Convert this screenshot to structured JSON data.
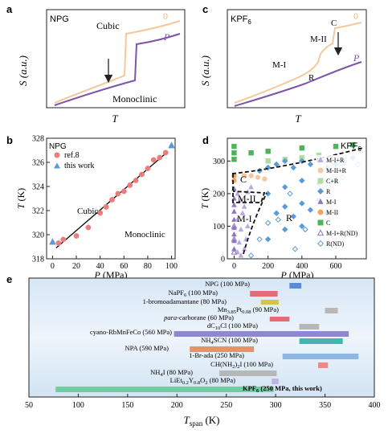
{
  "chart_data": [
    {
      "panel": "a",
      "type": "line",
      "material": "NPG",
      "xlabel": "T",
      "ylabel": "S (a.u.)",
      "labels": {
        "high": "Cubic",
        "low": "Monoclinic",
        "p0": "0",
        "pP": "P"
      },
      "series": [
        {
          "name": "0",
          "color": "#f5c79b"
        },
        {
          "name": "P",
          "color": "#7b55a8"
        }
      ]
    },
    {
      "panel": "c",
      "type": "line",
      "material": "KPF6",
      "xlabel": "T",
      "ylabel": "S (a.u.)",
      "labels": {
        "c": "C",
        "m2": "M-II",
        "m1": "M-I",
        "r": "R",
        "p0": "0",
        "pP": "P"
      },
      "series": [
        {
          "name": "0",
          "color": "#f5c79b"
        },
        {
          "name": "P",
          "color": "#7b55a8"
        }
      ]
    },
    {
      "panel": "b",
      "type": "scatter",
      "material": "NPG",
      "xlabel": "P (MPa)",
      "ylabel": "T (K)",
      "xlim": [
        -5,
        103
      ],
      "ylim": [
        318,
        328
      ],
      "xticks": [
        0,
        20,
        40,
        60,
        80,
        100
      ],
      "yticks": [
        318,
        320,
        322,
        324,
        326,
        328
      ],
      "regions": {
        "upper": "Cubic",
        "lower": "Monoclinic"
      },
      "series": [
        {
          "name": "ref.8",
          "color": "#ec7c7c",
          "marker": "circle",
          "x": [
            5,
            9,
            20,
            30,
            40,
            45,
            50,
            55,
            60,
            65,
            70,
            75,
            80,
            85,
            90,
            95
          ],
          "y": [
            319.3,
            319.6,
            319.9,
            320.6,
            321.8,
            322.3,
            322.9,
            323.4,
            323.6,
            324.1,
            324.5,
            325.0,
            325.5,
            326.2,
            326.4,
            326.8
          ]
        },
        {
          "name": "this work",
          "color": "#5b9bd5",
          "marker": "triangle",
          "x": [
            0,
            100
          ],
          "y": [
            319.4,
            327.4
          ]
        }
      ],
      "fit": {
        "x": [
          3,
          97
        ],
        "y": [
          318.9,
          326.9
        ]
      }
    },
    {
      "panel": "d",
      "type": "scatter",
      "material": "KPF6",
      "xlabel": "P (MPa)",
      "ylabel": "T (K)",
      "xlim": [
        -40,
        780
      ],
      "ylim": [
        0,
        370
      ],
      "xticks": [
        0,
        200,
        400,
        600
      ],
      "yticks": [
        0,
        100,
        200,
        300
      ],
      "regions": {
        "c": "C",
        "m2": "M-II",
        "m1": "M-I",
        "r": "R"
      },
      "legend": [
        {
          "label": "M-I+R",
          "marker": "triangle",
          "color": "#b9a8dd"
        },
        {
          "label": "M-II+R",
          "marker": "circle",
          "color": "#f6c79c"
        },
        {
          "label": "C+R",
          "marker": "square",
          "color": "#aedd9f"
        },
        {
          "label": "R",
          "marker": "diamond",
          "color": "#5b9bd5"
        },
        {
          "label": "M-I",
          "marker": "triangle",
          "color": "#8d76c3"
        },
        {
          "label": "M-II",
          "marker": "circle",
          "color": "#f2a35c"
        },
        {
          "label": "C",
          "marker": "square",
          "color": "#4fb35b"
        },
        {
          "label": "M-I+R(ND)",
          "marker": "triangle-open",
          "color": "#8d76c3"
        },
        {
          "label": "R(ND)",
          "marker": "diamond-open",
          "color": "#5b9bd5"
        }
      ],
      "points": [
        {
          "s": "C",
          "x": [
            0,
            0,
            0,
            100,
            200,
            400,
            600,
            700
          ],
          "y": [
            345,
            325,
            305,
            325,
            330,
            340,
            345,
            350
          ]
        },
        {
          "s": "C+R",
          "x": [
            200,
            300,
            400,
            500
          ],
          "y": [
            300,
            305,
            310,
            318
          ]
        },
        {
          "s": "M-II",
          "x": [
            0,
            0
          ],
          "y": [
            255,
            240
          ]
        },
        {
          "s": "M-II+R",
          "x": [
            60,
            100,
            140,
            180
          ],
          "y": [
            255,
            255,
            250,
            245
          ]
        },
        {
          "s": "M-I",
          "x": [
            0,
            0,
            0,
            0,
            0,
            0,
            0,
            0,
            0
          ],
          "y": [
            215,
            185,
            165,
            145,
            120,
            95,
            75,
            55,
            30
          ]
        },
        {
          "s": "M-I+R",
          "x": [
            20,
            40,
            60,
            80,
            100,
            20,
            50,
            80,
            40,
            70,
            30,
            60,
            20,
            40
          ],
          "y": [
            200,
            180,
            160,
            205,
            220,
            120,
            140,
            100,
            90,
            60,
            50,
            30,
            20,
            10
          ]
        },
        {
          "s": "M-I+R(ND)",
          "x": [
            0,
            0,
            0
          ],
          "y": [
            100,
            60,
            20
          ]
        },
        {
          "s": "R",
          "x": [
            150,
            200,
            250,
            300,
            350,
            400,
            450,
            500,
            550,
            600,
            650,
            700,
            200,
            300,
            400,
            500,
            600,
            300,
            400,
            500,
            250,
            350,
            450,
            550,
            400,
            300,
            200
          ],
          "y": [
            270,
            280,
            290,
            300,
            280,
            300,
            290,
            300,
            280,
            290,
            300,
            310,
            200,
            220,
            240,
            230,
            240,
            160,
            170,
            180,
            140,
            130,
            150,
            140,
            100,
            90,
            60
          ]
        },
        {
          "s": "R(ND)",
          "x": [
            100,
            150,
            200,
            260,
            330,
            360,
            420,
            640,
            730
          ],
          "y": [
            10,
            60,
            110,
            120,
            200,
            30,
            90,
            250,
            290
          ]
        }
      ]
    },
    {
      "panel": "e",
      "type": "bar",
      "orientation": "horizontal",
      "xlabel": "T",
      "xlabel_sub": "span",
      "xlabel_unit": " (K)",
      "xlim": [
        50,
        400
      ],
      "xticks": [
        50,
        100,
        150,
        200,
        250,
        300,
        350,
        400
      ],
      "bars": [
        {
          "label": "NPG (100 MPa)",
          "start": 314,
          "end": 326,
          "color": "#5b8bd1"
        },
        {
          "label": "NaPF6 (100 MPa)",
          "start": 274,
          "end": 302,
          "color": "#e26b75"
        },
        {
          "label": "1-bromoadamantane (80 MPa)",
          "start": 285,
          "end": 303,
          "color": "#d7c150"
        },
        {
          "label": "Mn3.85Pt0.08 (90 MPa)",
          "start": 350,
          "end": 363,
          "color": "#b7b7b7"
        },
        {
          "label": "para-carborane (60 MPa)",
          "start": 294,
          "end": 314,
          "color": "#e26b75"
        },
        {
          "label": "dC10Cl (100 MPa)",
          "start": 324,
          "end": 344,
          "color": "#b7b7b7"
        },
        {
          "label": "cyano-RbMnFeCo (560 MPa)",
          "start": 197,
          "end": 374,
          "color": "#8f86d4"
        },
        {
          "label": "NH4SCN (100 MPa)",
          "start": 324,
          "end": 368,
          "color": "#49b3b2"
        },
        {
          "label": "NPA (590 MPa)",
          "start": 213,
          "end": 278,
          "color": "#e0956a"
        },
        {
          "label": "1-Br-ada (250 MPa)",
          "start": 307,
          "end": 384,
          "color": "#8fb5e3"
        },
        {
          "label": "CH(NH2)2I (100 MPa)",
          "start": 343,
          "end": 353,
          "color": "#ec8a8a"
        },
        {
          "label": "NH4I (80 MPa)",
          "start": 243,
          "end": 301,
          "color": "#b7b7b7"
        },
        {
          "label": "LiEt0.2Y0.8O2 (80 MPa)",
          "start": 296,
          "end": 303,
          "color": "#c3b2e0"
        },
        {
          "label": "KPF6 (250 MPa, this work)",
          "start": 77,
          "end": 298,
          "color": "#72cca2"
        }
      ]
    }
  ],
  "panel_letters": {
    "a": "a",
    "b": "b",
    "c": "c",
    "d": "d",
    "e": "e"
  },
  "bar_labels": {
    "npg": "NPG (100 MPa)",
    "napf6_pre": "NaPF",
    "napf6_sub": "6",
    "napf6_post": " (100 MPa)",
    "bromo": "1-bromoadamantane (80 MPa)",
    "mn_pre": "Mn",
    "mn_sub1": "3.85",
    "mn_mid": "Pt",
    "mn_sub2": "0.08",
    "mn_post": " (90 MPa)",
    "para_it": "para",
    "para_post": "-carborane (60 MPa)",
    "dc_pre": "dC",
    "dc_sub": "10",
    "dc_post": "Cl (100 MPa)",
    "cyano": "cyano-RbMnFeCo (560 MPa)",
    "nh4scn_pre": "NH",
    "nh4scn_sub": "4",
    "nh4scn_post": "SCN (100 MPa)",
    "npa": "NPA (590 MPa)",
    "brada": "1-Br-ada (250 MPa)",
    "ch_pre": "CH(NH",
    "ch_sub": "2",
    "ch_post": ")",
    "ch_sub2": "2",
    "ch_post2": "I (100 MPa)",
    "nh4i_pre": "NH",
    "nh4i_sub": "4",
    "nh4i_post": "I (80 MPa)",
    "li_pre": "LiEt",
    "li_sub1": "0.2",
    "li_mid": "Y",
    "li_sub2": "0.8",
    "li_mid2": "O",
    "li_sub3": "2",
    "li_post": " (80 MPa)",
    "kpf_pre": "KPF",
    "kpf_sub": "6",
    "kpf_post": " (250 MPa, this work)"
  },
  "d_title_pre": "KPF",
  "d_title_sub": "6",
  "c_title_pre": "KPF",
  "c_title_sub": "6"
}
